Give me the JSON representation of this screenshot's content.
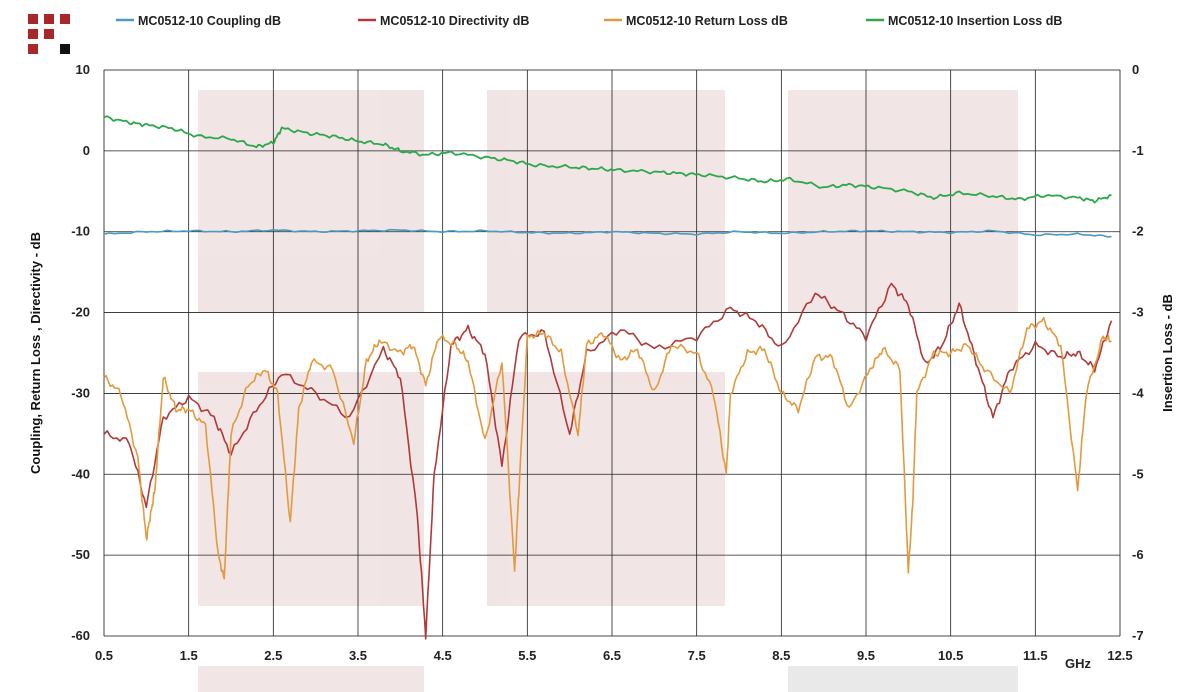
{
  "chart_data": {
    "type": "line",
    "x_range": [
      0.5,
      12.5
    ],
    "x_ticks": [
      "0.5",
      "1.5",
      "2.5",
      "3.5",
      "4.5",
      "5.5",
      "6.5",
      "7.5",
      "8.5",
      "9.5",
      "10.5",
      "11.5",
      "12.5"
    ],
    "x_unit": "GHz",
    "ylim_left": [
      -60,
      10
    ],
    "ylim_right": [
      -7,
      0
    ],
    "y_ticks_left": [
      "10",
      "0",
      "-10",
      "-20",
      "-30",
      "-40",
      "-50",
      "-60"
    ],
    "y_ticks_right": [
      "0",
      "-1",
      "-2",
      "-3",
      "-4",
      "-5",
      "-6",
      "-7"
    ],
    "ylabel_left": "Coupling, Return Loss , Directivity - dB",
    "ylabel_right": "Insertion Loss - dB",
    "grid": true,
    "legend_position": "top",
    "series": [
      {
        "name": "MC0512-10 Coupling dB",
        "color": "#4a9bc0",
        "axis": "left",
        "x": [
          0.5,
          1.0,
          1.5,
          2.0,
          2.5,
          3.0,
          3.5,
          4.0,
          4.5,
          5.0,
          5.5,
          6.0,
          6.5,
          7.0,
          7.5,
          8.0,
          8.5,
          9.0,
          9.5,
          10.0,
          10.5,
          11.0,
          11.5,
          12.0,
          12.4
        ],
        "y": [
          -10.3,
          -10.0,
          -9.9,
          -10.0,
          -9.8,
          -10.0,
          -9.9,
          -9.8,
          -10.0,
          -9.9,
          -10.1,
          -10.2,
          -10.0,
          -10.2,
          -10.3,
          -10.0,
          -10.2,
          -10.0,
          -9.9,
          -10.0,
          -10.1,
          -9.9,
          -10.4,
          -10.3,
          -10.6
        ]
      },
      {
        "name": "MC0512-10 Directivity dB",
        "color": "#b03a3a",
        "axis": "left",
        "x": [
          0.5,
          0.8,
          1.0,
          1.2,
          1.5,
          1.8,
          2.0,
          2.3,
          2.6,
          3.0,
          3.4,
          3.8,
          4.0,
          4.2,
          4.3,
          4.4,
          4.6,
          4.8,
          5.0,
          5.2,
          5.4,
          5.7,
          6.0,
          6.2,
          6.6,
          7.0,
          7.5,
          7.9,
          8.2,
          8.5,
          8.9,
          9.2,
          9.5,
          9.8,
          10.0,
          10.2,
          10.4,
          10.6,
          10.8,
          11.0,
          11.2,
          11.5,
          11.8,
          12.0,
          12.2,
          12.4
        ],
        "y": [
          -35.0,
          -36.0,
          -44.0,
          -33.0,
          -30.5,
          -33.0,
          -37.5,
          -32.0,
          -27.5,
          -30.0,
          -33.0,
          -24.5,
          -28.0,
          -45.0,
          -60.0,
          -40.0,
          -24.0,
          -22.0,
          -25.0,
          -39.0,
          -23.0,
          -22.5,
          -35.0,
          -25.0,
          -22.0,
          -24.5,
          -23.0,
          -19.5,
          -21.0,
          -24.5,
          -17.5,
          -20.0,
          -23.0,
          -16.5,
          -19.0,
          -26.5,
          -24.0,
          -19.0,
          -26.0,
          -33.0,
          -27.0,
          -24.0,
          -25.5,
          -25.0,
          -27.0,
          -21.0
        ]
      },
      {
        "name": "MC0512-10 Return Loss dB",
        "color": "#e39a3e",
        "axis": "left",
        "x": [
          0.5,
          0.7,
          0.9,
          1.0,
          1.05,
          1.1,
          1.2,
          1.35,
          1.5,
          1.7,
          1.85,
          1.92,
          2.0,
          2.2,
          2.4,
          2.55,
          2.7,
          2.8,
          2.95,
          3.2,
          3.45,
          3.6,
          3.75,
          4.0,
          4.15,
          4.3,
          4.45,
          4.65,
          4.8,
          5.0,
          5.2,
          5.35,
          5.4,
          5.5,
          5.7,
          5.9,
          6.1,
          6.2,
          6.4,
          6.6,
          6.8,
          7.0,
          7.2,
          7.5,
          7.7,
          7.85,
          7.9,
          8.1,
          8.3,
          8.5,
          8.7,
          8.9,
          9.1,
          9.3,
          9.55,
          9.7,
          9.9,
          10.0,
          10.05,
          10.1,
          10.3,
          10.5,
          10.7,
          10.9,
          11.2,
          11.4,
          11.6,
          11.8,
          12.0,
          12.1,
          12.3,
          12.4
        ],
        "y": [
          -28.0,
          -30.0,
          -38.0,
          -48.0,
          -45.0,
          -42.0,
          -28.0,
          -32.0,
          -32.0,
          -34.0,
          -50.0,
          -53.0,
          -35.0,
          -29.0,
          -27.0,
          -30.0,
          -46.0,
          -32.0,
          -26.0,
          -27.0,
          -36.0,
          -26.0,
          -23.5,
          -25.0,
          -24.0,
          -29.0,
          -23.0,
          -24.0,
          -26.0,
          -36.0,
          -26.0,
          -52.0,
          -42.0,
          -23.0,
          -22.5,
          -25.0,
          -35.0,
          -24.0,
          -22.5,
          -26.0,
          -24.5,
          -30.0,
          -24.0,
          -25.0,
          -30.0,
          -40.0,
          -30.0,
          -25.0,
          -24.5,
          -30.0,
          -32.0,
          -25.5,
          -25.5,
          -32.0,
          -27.0,
          -24.5,
          -27.0,
          -52.0,
          -44.0,
          -30.0,
          -25.0,
          -25.0,
          -24.0,
          -27.0,
          -30.0,
          -22.0,
          -21.0,
          -24.0,
          -42.0,
          -30.0,
          -23.0,
          -23.5
        ]
      },
      {
        "name": "MC0512-10 Insertion Loss dB",
        "color": "#2ca84a",
        "axis": "right",
        "x": [
          0.5,
          0.8,
          1.0,
          1.3,
          1.6,
          2.0,
          2.3,
          2.5,
          2.6,
          2.9,
          3.2,
          3.5,
          3.8,
          4.0,
          4.3,
          4.6,
          5.0,
          5.3,
          5.6,
          6.0,
          6.3,
          6.6,
          7.0,
          7.3,
          7.6,
          8.0,
          8.3,
          8.6,
          9.0,
          9.3,
          9.6,
          10.0,
          10.3,
          10.6,
          11.0,
          11.3,
          11.6,
          12.0,
          12.2,
          12.4
        ],
        "y": [
          -0.58,
          -0.65,
          -0.68,
          -0.72,
          -0.82,
          -0.85,
          -0.95,
          -0.9,
          -0.72,
          -0.78,
          -0.82,
          -0.88,
          -0.92,
          -1.0,
          -1.05,
          -1.02,
          -1.08,
          -1.12,
          -1.18,
          -1.2,
          -1.22,
          -1.24,
          -1.26,
          -1.28,
          -1.3,
          -1.34,
          -1.38,
          -1.35,
          -1.45,
          -1.42,
          -1.45,
          -1.5,
          -1.58,
          -1.52,
          -1.56,
          -1.6,
          -1.55,
          -1.58,
          -1.62,
          -1.55
        ]
      }
    ]
  },
  "logo": {
    "name": "logo-icon"
  }
}
